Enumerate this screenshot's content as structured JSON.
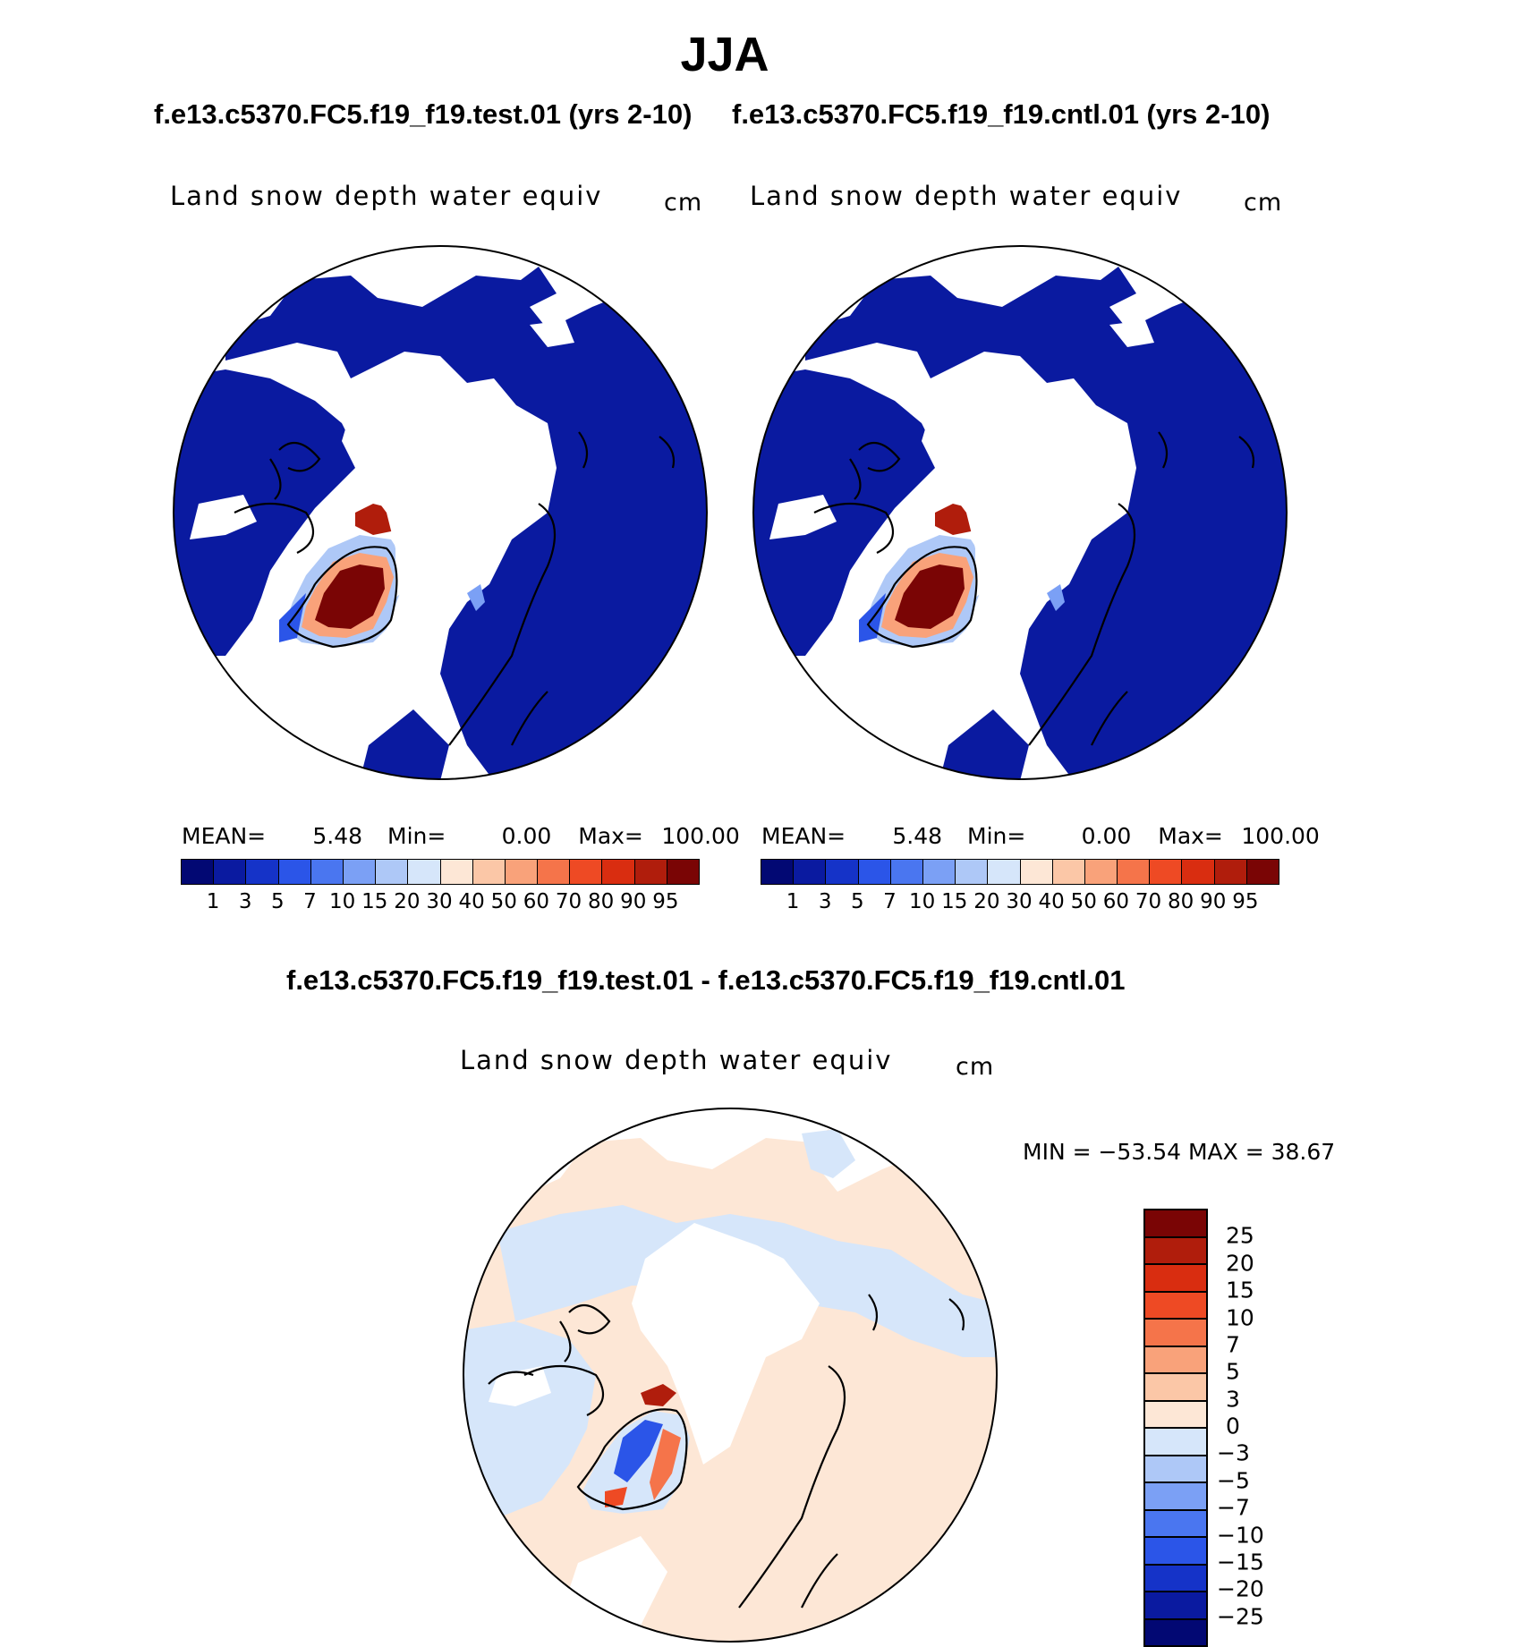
{
  "title": "JJA",
  "subtitle_test": "f.e13.c5370.FC5.f19_f19.test.01 (yrs 2-10)",
  "subtitle_cntl": "f.e13.c5370.FC5.f19_f19.cntl.01 (yrs 2-10)",
  "diff_subtitle": "f.e13.c5370.FC5.f19_f19.test.01 - f.e13.c5370.FC5.f19_f19.cntl.01",
  "panels": [
    {
      "variable": "Land snow depth water equiv",
      "units": "cm",
      "mean_label": "MEAN=",
      "mean": "5.48",
      "min_label": "Min=",
      "min": "0.00",
      "max_label": "Max=",
      "max": "100.00"
    },
    {
      "variable": "Land snow depth water equiv",
      "units": "cm",
      "mean_label": "MEAN=",
      "mean": "5.48",
      "min_label": "Min=",
      "min": "0.00",
      "max_label": "Max=",
      "max": "100.00"
    }
  ],
  "diff_panel": {
    "variable": "Land snow depth water equiv",
    "units": "cm",
    "stats": "MIN = −53.54 MAX =   38.67"
  },
  "abs_colorbar": {
    "labels": [
      "1",
      "3",
      "5",
      "7",
      "10",
      "15",
      "20",
      "30",
      "40",
      "50",
      "60",
      "70",
      "80",
      "90",
      "95"
    ],
    "colors": [
      "#020873",
      "#0a1aa0",
      "#1533c8",
      "#2b55e8",
      "#4a76f0",
      "#7ba0f5",
      "#aec8f7",
      "#d6e6fa",
      "#fde7d6",
      "#fbc7a7",
      "#f9a27a",
      "#f5744a",
      "#ee4a24",
      "#d92d10",
      "#b01d0c",
      "#7a0505"
    ]
  },
  "diff_colorbar": {
    "labels": [
      "25",
      "20",
      "15",
      "10",
      "7",
      "5",
      "3",
      "0",
      "−3",
      "−5",
      "−7",
      "−10",
      "−15",
      "−20",
      "−25"
    ],
    "colors": [
      "#7a0505",
      "#b01d0c",
      "#d92d10",
      "#ee4a24",
      "#f5744a",
      "#f9a27a",
      "#fbc7a7",
      "#fde7d6",
      "#d6e6fa",
      "#aec8f7",
      "#7ba0f5",
      "#4a76f0",
      "#2b55e8",
      "#1533c8",
      "#0a1aa0",
      "#020873"
    ]
  }
}
